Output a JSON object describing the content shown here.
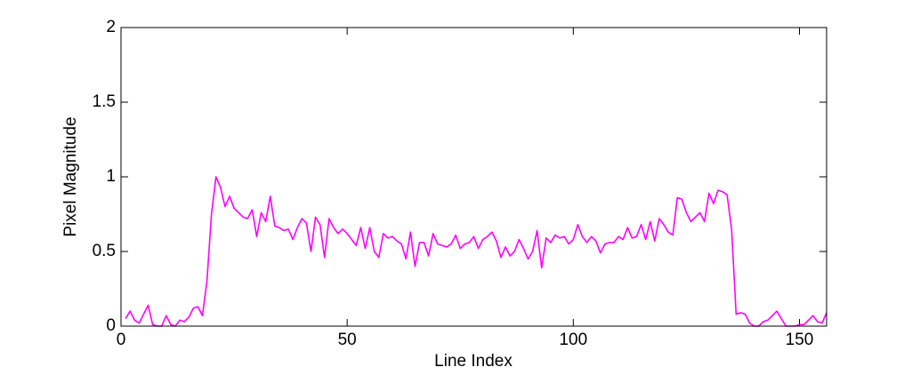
{
  "chart_data": {
    "type": "line",
    "xlabel": "Line Index",
    "ylabel": "Pixel Magnitude",
    "color": "#ff00ff",
    "xlim": [
      0,
      156
    ],
    "ylim": [
      0,
      2
    ],
    "xticks": [
      0,
      50,
      100,
      150
    ],
    "yticks": [
      0,
      0.5,
      1,
      1.5,
      2
    ],
    "x": [
      1,
      2,
      3,
      4,
      5,
      6,
      7,
      8,
      9,
      10,
      11,
      12,
      13,
      14,
      15,
      16,
      17,
      18,
      19,
      20,
      21,
      22,
      23,
      24,
      25,
      26,
      27,
      28,
      29,
      30,
      31,
      32,
      33,
      34,
      35,
      36,
      37,
      38,
      39,
      40,
      41,
      42,
      43,
      44,
      45,
      46,
      47,
      48,
      49,
      50,
      51,
      52,
      53,
      54,
      55,
      56,
      57,
      58,
      59,
      60,
      61,
      62,
      63,
      64,
      65,
      66,
      67,
      68,
      69,
      70,
      71,
      72,
      73,
      74,
      75,
      76,
      77,
      78,
      79,
      80,
      81,
      82,
      83,
      84,
      85,
      86,
      87,
      88,
      89,
      90,
      91,
      92,
      93,
      94,
      95,
      96,
      97,
      98,
      99,
      100,
      101,
      102,
      103,
      104,
      105,
      106,
      107,
      108,
      109,
      110,
      111,
      112,
      113,
      114,
      115,
      116,
      117,
      118,
      119,
      120,
      121,
      122,
      123,
      124,
      125,
      126,
      127,
      128,
      129,
      130,
      131,
      132,
      133,
      134,
      135,
      136,
      137,
      138,
      139,
      140,
      141,
      142,
      143,
      144,
      145,
      146,
      147,
      148,
      149,
      150,
      151,
      152,
      153,
      154,
      155,
      156
    ],
    "values": [
      0.05,
      0.1,
      0.04,
      0.02,
      0.08,
      0.14,
      0.01,
      0.0,
      0.0,
      0.07,
      0.01,
      0.0,
      0.04,
      0.03,
      0.06,
      0.12,
      0.13,
      0.07,
      0.3,
      0.75,
      1.0,
      0.93,
      0.8,
      0.87,
      0.79,
      0.76,
      0.73,
      0.72,
      0.78,
      0.6,
      0.76,
      0.7,
      0.87,
      0.67,
      0.66,
      0.64,
      0.65,
      0.58,
      0.66,
      0.72,
      0.69,
      0.5,
      0.73,
      0.68,
      0.46,
      0.72,
      0.66,
      0.62,
      0.65,
      0.62,
      0.58,
      0.54,
      0.66,
      0.52,
      0.66,
      0.5,
      0.46,
      0.62,
      0.59,
      0.6,
      0.57,
      0.55,
      0.45,
      0.63,
      0.4,
      0.56,
      0.56,
      0.47,
      0.62,
      0.55,
      0.54,
      0.53,
      0.55,
      0.61,
      0.52,
      0.55,
      0.56,
      0.6,
      0.52,
      0.58,
      0.6,
      0.63,
      0.57,
      0.46,
      0.53,
      0.47,
      0.5,
      0.58,
      0.52,
      0.45,
      0.5,
      0.64,
      0.39,
      0.59,
      0.56,
      0.61,
      0.59,
      0.6,
      0.55,
      0.58,
      0.68,
      0.6,
      0.56,
      0.6,
      0.57,
      0.49,
      0.55,
      0.56,
      0.56,
      0.6,
      0.58,
      0.66,
      0.59,
      0.6,
      0.68,
      0.58,
      0.7,
      0.57,
      0.72,
      0.68,
      0.63,
      0.61,
      0.86,
      0.85,
      0.76,
      0.7,
      0.73,
      0.76,
      0.7,
      0.89,
      0.82,
      0.91,
      0.9,
      0.88,
      0.65,
      0.08,
      0.09,
      0.08,
      0.02,
      0.0,
      0.0,
      0.03,
      0.04,
      0.07,
      0.1,
      0.05,
      0.0,
      0.0,
      0.0,
      0.01,
      0.01,
      0.04,
      0.07,
      0.03,
      0.02,
      0.09
    ]
  }
}
